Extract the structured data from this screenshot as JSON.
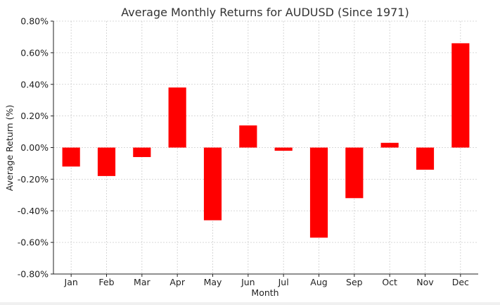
{
  "chart_data": {
    "type": "bar",
    "title": "Average Monthly Returns for AUDUSD (Since 1971)",
    "xlabel": "Month",
    "ylabel": "Average Return (%)",
    "categories": [
      "Jan",
      "Feb",
      "Mar",
      "Apr",
      "May",
      "Jun",
      "Jul",
      "Aug",
      "Sep",
      "Oct",
      "Nov",
      "Dec"
    ],
    "values": [
      -0.12,
      -0.18,
      -0.06,
      0.38,
      -0.46,
      0.14,
      -0.02,
      -0.57,
      -0.32,
      0.03,
      -0.14,
      0.66
    ],
    "ylim": [
      -0.8,
      0.8
    ],
    "yticks": [
      -0.8,
      -0.6,
      -0.4,
      -0.2,
      0.0,
      0.2,
      0.4,
      0.6,
      0.8
    ],
    "ytick_labels": [
      "-0.80%",
      "-0.60%",
      "-0.40%",
      "-0.20%",
      "0.00%",
      "0.20%",
      "0.40%",
      "0.60%",
      "0.80%"
    ],
    "grid": true,
    "bar_color": "#ff0000"
  }
}
